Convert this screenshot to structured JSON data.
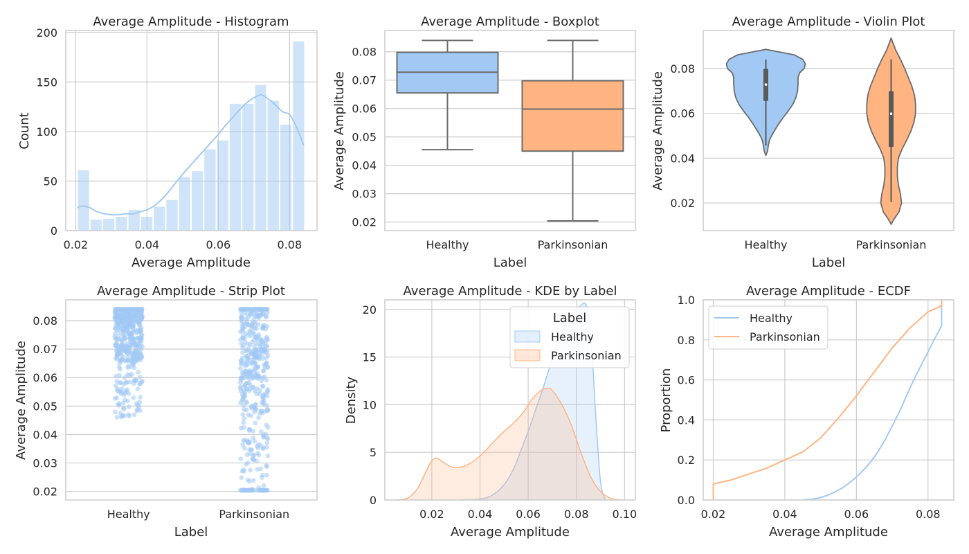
{
  "colors": {
    "healthy": "#a1c9f4",
    "parkinsonian": "#ffb482",
    "grid": "#cccccc",
    "frame": "#cccccc",
    "box_line": "#6b6b6b",
    "text": "#262626"
  },
  "chart_data": [
    {
      "id": "hist",
      "type": "bar",
      "title": "Average Amplitude - Histogram",
      "xlabel": "Average Amplitude",
      "ylabel": "Count",
      "xlim": [
        0.0172,
        0.0877
      ],
      "ylim": [
        0,
        202
      ],
      "xticks": [
        0.02,
        0.04,
        0.06,
        0.08
      ],
      "xtick_labels": [
        "0.02",
        "0.04",
        "0.06",
        "0.08"
      ],
      "yticks": [
        0,
        50,
        100,
        150,
        200
      ],
      "ytick_labels": [
        "0",
        "50",
        "100",
        "150",
        "200"
      ],
      "bin_start": 0.0204,
      "bin_width": 0.00355,
      "values": [
        61,
        11,
        12,
        14,
        21,
        14,
        24,
        31,
        54,
        60,
        82,
        91,
        128,
        128,
        147,
        131,
        107,
        191
      ],
      "kde": {
        "x": [
          0.0204,
          0.022,
          0.024,
          0.026,
          0.028,
          0.03,
          0.032,
          0.034,
          0.036,
          0.038,
          0.04,
          0.042,
          0.044,
          0.046,
          0.048,
          0.05,
          0.052,
          0.054,
          0.056,
          0.058,
          0.06,
          0.062,
          0.064,
          0.066,
          0.068,
          0.07,
          0.072,
          0.074,
          0.076,
          0.078,
          0.08,
          0.082,
          0.084
        ],
        "y": [
          23,
          25,
          23,
          19,
          17,
          16,
          16,
          17,
          17,
          19,
          21,
          25,
          31,
          39,
          48,
          57,
          65,
          73,
          81,
          89,
          97,
          106,
          114,
          122,
          129,
          134,
          137,
          133,
          127,
          120,
          117,
          104,
          86
        ]
      },
      "grid": true
    },
    {
      "id": "box",
      "type": "box",
      "title": "Average Amplitude - Boxplot",
      "xlabel": "Label",
      "ylabel": "Average Amplitude",
      "categories": [
        "Healthy",
        "Parkinsonian"
      ],
      "ylim": [
        0.017,
        0.0875
      ],
      "yticks": [
        0.02,
        0.03,
        0.04,
        0.05,
        0.06,
        0.07,
        0.08
      ],
      "ytick_labels": [
        "0.02",
        "0.03",
        "0.04",
        "0.05",
        "0.06",
        "0.07",
        "0.08"
      ],
      "boxes": [
        {
          "name": "Healthy",
          "whisker_low": 0.0455,
          "q1": 0.0655,
          "median": 0.0728,
          "q3": 0.0798,
          "whisker_high": 0.084
        },
        {
          "name": "Parkinsonian",
          "whisker_low": 0.0204,
          "q1": 0.045,
          "median": 0.0598,
          "q3": 0.0698,
          "whisker_high": 0.084
        }
      ],
      "grid": true
    },
    {
      "id": "violin",
      "type": "violin",
      "title": "Average Amplitude - Violin Plot",
      "xlabel": "Label",
      "ylabel": "Average Amplitude",
      "categories": [
        "Healthy",
        "Parkinsonian"
      ],
      "ylim": [
        0.0077,
        0.0969
      ],
      "yticks": [
        0.02,
        0.04,
        0.06,
        0.08
      ],
      "ytick_labels": [
        "0.02",
        "0.04",
        "0.06",
        "0.08"
      ],
      "violins": [
        {
          "name": "Healthy",
          "y": [
            0.0412,
            0.043,
            0.046,
            0.048,
            0.05,
            0.052,
            0.055,
            0.058,
            0.061,
            0.064,
            0.067,
            0.07,
            0.073,
            0.076,
            0.078,
            0.08,
            0.082,
            0.084,
            0.086,
            0.0885
          ],
          "half_width": [
            0,
            0.03,
            0.05,
            0.07,
            0.11,
            0.16,
            0.24,
            0.33,
            0.43,
            0.52,
            0.58,
            0.61,
            0.62,
            0.62,
            0.65,
            0.74,
            0.76,
            0.71,
            0.55,
            0
          ],
          "q1": 0.0655,
          "median": 0.0728,
          "q3": 0.0798,
          "low": 0.0455,
          "high": 0.084
        },
        {
          "name": "Parkinsonian",
          "y": [
            0.0105,
            0.013,
            0.016,
            0.02,
            0.024,
            0.028,
            0.032,
            0.036,
            0.04,
            0.044,
            0.048,
            0.052,
            0.056,
            0.06,
            0.064,
            0.068,
            0.072,
            0.076,
            0.08,
            0.084,
            0.088,
            0.0935
          ],
          "half_width": [
            0,
            0.06,
            0.15,
            0.2,
            0.18,
            0.14,
            0.12,
            0.12,
            0.14,
            0.21,
            0.3,
            0.38,
            0.44,
            0.47,
            0.47,
            0.45,
            0.4,
            0.33,
            0.26,
            0.18,
            0.09,
            0
          ],
          "q1": 0.045,
          "median": 0.0598,
          "q3": 0.0698,
          "low": 0.0204,
          "high": 0.084
        }
      ],
      "grid": true
    },
    {
      "id": "strip",
      "type": "scatter",
      "title": "Average Amplitude - Strip Plot",
      "xlabel": "Label",
      "ylabel": "Average Amplitude",
      "categories": [
        "Healthy",
        "Parkinsonian"
      ],
      "ylim": [
        0.017,
        0.0873
      ],
      "yticks": [
        0.02,
        0.03,
        0.04,
        0.05,
        0.06,
        0.07,
        0.08
      ],
      "ytick_labels": [
        "0.02",
        "0.03",
        "0.04",
        "0.05",
        "0.06",
        "0.07",
        "0.08"
      ],
      "series": [
        {
          "name": "Healthy",
          "count": 500,
          "min": 0.0455,
          "max": 0.084,
          "q1": 0.0655,
          "median": 0.0728,
          "q3": 0.0798
        },
        {
          "name": "Parkinsonian",
          "count": 500,
          "min": 0.0204,
          "max": 0.084,
          "q1": 0.045,
          "median": 0.0598,
          "q3": 0.0698,
          "pile_at_min": 60
        }
      ],
      "grid": true
    },
    {
      "id": "kde",
      "type": "area",
      "title": "Average Amplitude - KDE by Label",
      "xlabel": "Average Amplitude",
      "ylabel": "Density",
      "xlim": [
        0.0005,
        0.1045
      ],
      "ylim": [
        0,
        21
      ],
      "xticks": [
        0.02,
        0.04,
        0.06,
        0.08,
        0.1
      ],
      "xtick_labels": [
        "0.02",
        "0.04",
        "0.06",
        "0.08",
        "0.10"
      ],
      "yticks": [
        0,
        5,
        10,
        15,
        20
      ],
      "ytick_labels": [
        "0",
        "5",
        "10",
        "15",
        "20"
      ],
      "legend": {
        "title": "Label",
        "position": "top-right",
        "entries": [
          "Healthy",
          "Parkinsonian"
        ]
      },
      "series": [
        {
          "name": "Healthy",
          "x": [
            0.032,
            0.04,
            0.045,
            0.05,
            0.054,
            0.057,
            0.06,
            0.063,
            0.066,
            0.069,
            0.072,
            0.075,
            0.078,
            0.081,
            0.084,
            0.086,
            0.088,
            0.09,
            0.092
          ],
          "y": [
            0,
            0.1,
            0.5,
            1.6,
            3.3,
            5.2,
            7.2,
            9.4,
            11.6,
            14.0,
            16.3,
            18.2,
            19.5,
            20.2,
            20.5,
            17.5,
            9.0,
            2.0,
            0
          ]
        },
        {
          "name": "Parkinsonian",
          "x": [
            0.005,
            0.01,
            0.014,
            0.018,
            0.02,
            0.022,
            0.024,
            0.027,
            0.03,
            0.034,
            0.038,
            0.042,
            0.046,
            0.05,
            0.054,
            0.058,
            0.062,
            0.066,
            0.068,
            0.07,
            0.074,
            0.078,
            0.082,
            0.086,
            0.09,
            0.094,
            0.098
          ],
          "y": [
            0,
            0.2,
            1.2,
            3.2,
            4.1,
            4.4,
            4.1,
            3.6,
            3.4,
            3.6,
            4.2,
            5.1,
            6.2,
            7.2,
            8.1,
            9.2,
            10.7,
            11.6,
            11.7,
            11.5,
            10.0,
            7.8,
            4.9,
            2.4,
            0.9,
            0.2,
            0
          ]
        }
      ],
      "grid": true
    },
    {
      "id": "ecdf",
      "type": "line",
      "title": "Average Amplitude - ECDF",
      "xlabel": "Average Amplitude",
      "ylabel": "Proportion",
      "xlim": [
        0.0172,
        0.0872
      ],
      "ylim": [
        0,
        1.0
      ],
      "xticks": [
        0.02,
        0.04,
        0.06,
        0.08
      ],
      "xtick_labels": [
        "0.02",
        "0.04",
        "0.06",
        "0.08"
      ],
      "yticks": [
        0,
        0.2,
        0.4,
        0.6,
        0.8,
        1.0
      ],
      "ytick_labels": [
        "0.0",
        "0.2",
        "0.4",
        "0.6",
        "0.8",
        "1.0"
      ],
      "legend": {
        "position": "top-left",
        "entries": [
          "Healthy",
          "Parkinsonian"
        ]
      },
      "series": [
        {
          "name": "Healthy",
          "x": [
            0.045,
            0.048,
            0.05,
            0.052,
            0.054,
            0.056,
            0.058,
            0.06,
            0.062,
            0.064,
            0.066,
            0.068,
            0.07,
            0.072,
            0.074,
            0.076,
            0.078,
            0.08,
            0.082,
            0.0838,
            0.0838
          ],
          "y": [
            0,
            0.005,
            0.012,
            0.024,
            0.04,
            0.06,
            0.085,
            0.115,
            0.15,
            0.19,
            0.24,
            0.3,
            0.37,
            0.44,
            0.52,
            0.6,
            0.67,
            0.74,
            0.81,
            0.87,
            1.0
          ]
        },
        {
          "name": "Parkinsonian",
          "x": [
            0.02,
            0.02,
            0.025,
            0.03,
            0.035,
            0.04,
            0.045,
            0.05,
            0.055,
            0.06,
            0.065,
            0.07,
            0.075,
            0.08,
            0.0838,
            0.0838
          ],
          "y": [
            0,
            0.08,
            0.1,
            0.13,
            0.16,
            0.2,
            0.24,
            0.31,
            0.41,
            0.52,
            0.64,
            0.76,
            0.86,
            0.94,
            0.97,
            1.0
          ]
        }
      ],
      "grid": true
    }
  ]
}
